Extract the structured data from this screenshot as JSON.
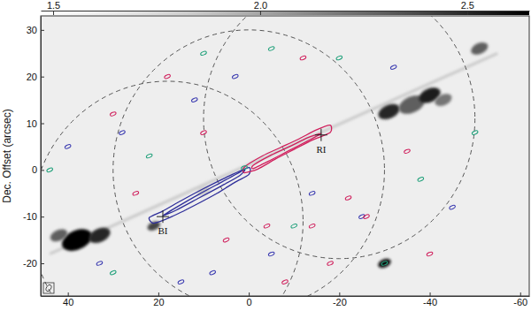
{
  "chart_data": {
    "type": "contour",
    "y_label": "Dec. Offset (arcsec)",
    "xlim": [
      46,
      -62
    ],
    "xticks": [
      40,
      20,
      0,
      -20,
      -40,
      -60
    ],
    "ylim": [
      -27,
      33
    ],
    "yticks": [
      -20,
      -10,
      0,
      10,
      20,
      30
    ],
    "colorbar": {
      "lim": [
        1.47,
        2.65
      ],
      "ticks": [
        1.5,
        {
          "value": 2,
          "label": "2.0"
        },
        2.5
      ]
    },
    "background": 1.62,
    "jet": {
      "x": [
        44,
        -55
      ],
      "y": [
        -18,
        25
      ],
      "value": 1.85
    },
    "knots": {
      "x": [
        38,
        33,
        42,
        21,
        -31,
        -36,
        -40,
        -43,
        -51,
        -30,
        10
      ],
      "y": [
        -15,
        -14,
        -14,
        -12,
        12.5,
        14,
        16,
        15,
        26,
        -20,
        -4.5
      ],
      "size": [
        3.5,
        2.5,
        2,
        1.5,
        2.5,
        3,
        2.5,
        2,
        2,
        1.5,
        1.5
      ],
      "values": [
        2.65,
        2.5,
        2.3,
        2.4,
        2.5,
        2.3,
        2.55,
        2.2,
        2.3,
        2.6,
        1.85
      ]
    },
    "beams": {
      "x": [
        18,
        0,
        -20
      ],
      "y": [
        -11,
        0,
        11
      ],
      "r": [
        30,
        30,
        30
      ]
    },
    "series": [
      {
        "type": "contour",
        "color": "#2f2f9a",
        "x": [
          0,
          5,
          10,
          15,
          19,
          22,
          21,
          17,
          12,
          7,
          3,
          0
        ],
        "y": [
          0.5,
          -1.6,
          -4.0,
          -6.6,
          -8.8,
          -10.2,
          -11.4,
          -10.0,
          -7.6,
          -5.0,
          -2.6,
          -1.0
        ]
      },
      {
        "type": "contour",
        "color": "#2f2f9a",
        "x": [
          1,
          6,
          11,
          16,
          19,
          16,
          11,
          6,
          2
        ],
        "y": [
          0,
          -2.6,
          -5.2,
          -8.0,
          -9.8,
          -8.6,
          -6.0,
          -3.4,
          -1.2
        ]
      },
      {
        "type": "contour",
        "color": "#d01f5c",
        "x": [
          1,
          -3,
          -7,
          -11,
          -15,
          -18,
          -18,
          -14,
          -10,
          -6,
          -2,
          1
        ],
        "y": [
          0.6,
          3.0,
          4.8,
          6.6,
          8.6,
          9.6,
          8.0,
          6.4,
          4.4,
          2.4,
          0.2,
          -0.6
        ]
      },
      {
        "type": "contour",
        "color": "#d01f5c",
        "x": [
          -1,
          -5,
          -9,
          -13,
          -16,
          -13,
          -9,
          -5,
          -1
        ],
        "y": [
          1.0,
          3.2,
          5.0,
          6.9,
          7.8,
          6.2,
          4.2,
          2.2,
          0.3
        ]
      },
      {
        "type": "scatter",
        "marker": "ellipse",
        "color": "#3a3ab0",
        "x": [
          33,
          28,
          12,
          8,
          -5,
          -14,
          -25,
          -32,
          40,
          15,
          -45,
          3
        ],
        "y": [
          -20,
          8,
          15,
          -22,
          -18,
          -5,
          -10,
          22,
          5,
          -24,
          -8,
          20
        ]
      },
      {
        "type": "scatter",
        "marker": "ellipse",
        "color": "#d01f5c",
        "x": [
          25,
          18,
          5,
          -8,
          -18,
          -26,
          -35,
          -12,
          -4,
          30,
          -40,
          10,
          -22,
          -14
        ],
        "y": [
          -5,
          20,
          -15,
          -24,
          -20,
          -10,
          4,
          24,
          -12,
          12,
          -18,
          8,
          -6,
          -12
        ]
      },
      {
        "type": "scatter",
        "marker": "ellipse",
        "color": "#1fa07a",
        "x": [
          44,
          30,
          10,
          -10,
          -20,
          -38,
          -50,
          22,
          -5,
          1,
          -30
        ],
        "y": [
          0,
          -22,
          25,
          -12,
          24,
          -2,
          8,
          3,
          26,
          0.5,
          -20
        ]
      }
    ],
    "annotations": [
      {
        "text": "BI",
        "x": 19,
        "y": -10
      },
      {
        "text": "RI",
        "x": -16,
        "y": 7.5
      }
    ]
  }
}
